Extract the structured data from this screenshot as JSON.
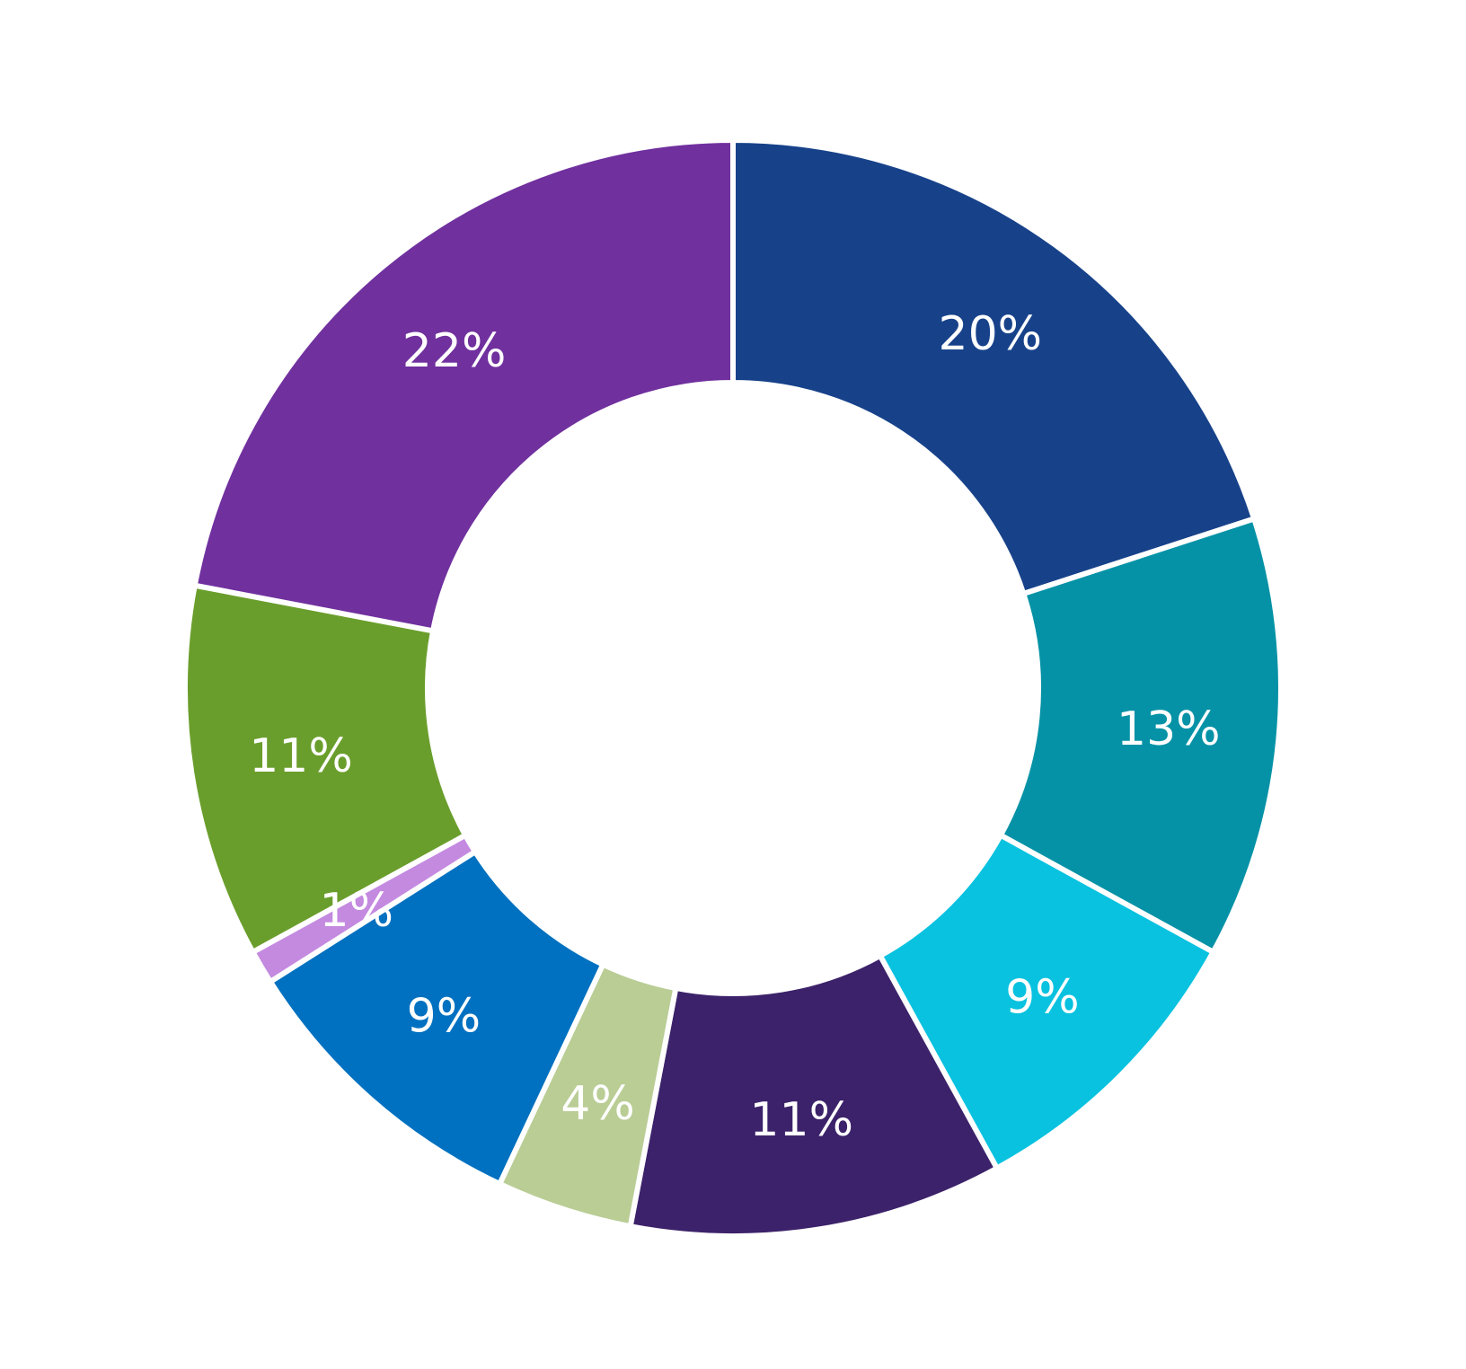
{
  "chart_data": {
    "type": "pie",
    "title": "",
    "slices": [
      {
        "value": 20,
        "label": "20%",
        "color": "#17428a"
      },
      {
        "value": 13,
        "label": "13%",
        "color": "#0592a6"
      },
      {
        "value": 9,
        "label": "9%",
        "color": "#08c2df"
      },
      {
        "value": 11,
        "label": "11%",
        "color": "#3c226a"
      },
      {
        "value": 4,
        "label": "4%",
        "color": "#b9cd95"
      },
      {
        "value": 9,
        "label": "9%",
        "color": "#0071c0"
      },
      {
        "value": 1,
        "label": "1%",
        "color": "#c48ae0"
      },
      {
        "value": 11,
        "label": "11%",
        "color": "#6a9e2c"
      },
      {
        "value": 22,
        "label": "22%",
        "color": "#70309e"
      }
    ],
    "legend": "none",
    "style": "donut"
  }
}
